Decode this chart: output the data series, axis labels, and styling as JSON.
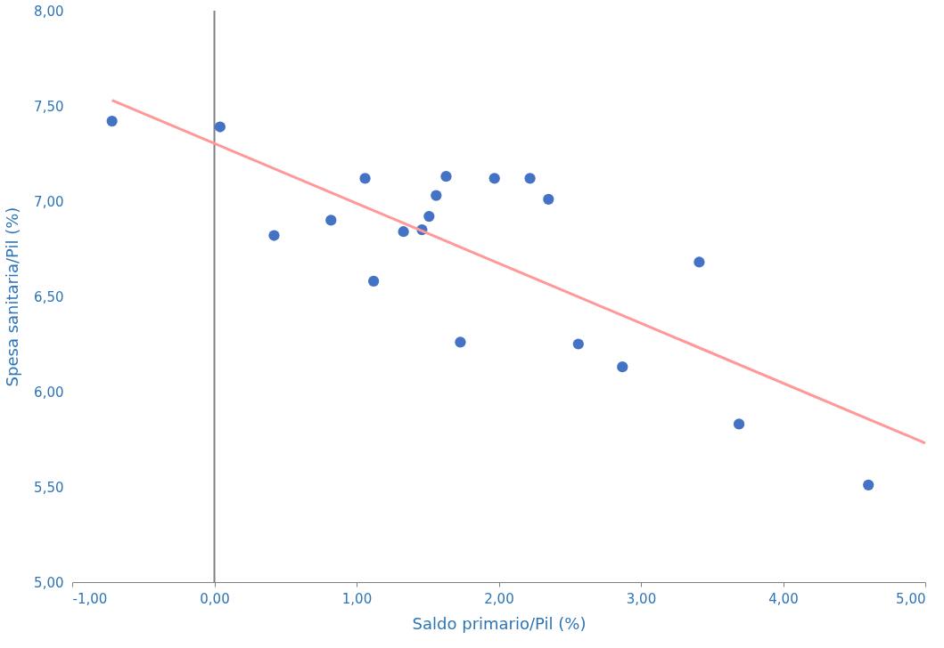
{
  "chart_data": {
    "type": "scatter",
    "xlabel": "Saldo primario/Pil (%)",
    "ylabel": "Spesa sanitaria/Pil (%)",
    "series": [
      {
        "color": "#4472c4",
        "marker": "circle",
        "x": [
          -0.72,
          0.04,
          0.42,
          0.82,
          1.06,
          1.12,
          1.33,
          1.46,
          1.51,
          1.56,
          1.63,
          1.73,
          1.97,
          2.22,
          2.35,
          2.56,
          2.87,
          3.41,
          3.69,
          4.6
        ],
        "values": [
          7.42,
          7.39,
          6.82,
          6.9,
          7.12,
          6.58,
          6.84,
          6.85,
          6.92,
          7.03,
          7.13,
          6.26,
          7.12,
          7.12,
          7.01,
          6.25,
          6.13,
          6.68,
          5.83,
          5.51
        ]
      },
      {
        "type": "line",
        "marker": "none",
        "color": "#ff9999",
        "x": [
          -0.72,
          5.0
        ],
        "values": [
          7.53,
          5.73
        ]
      }
    ],
    "xlim": [
      -1,
      5
    ],
    "xticks": [
      {
        "value": -1,
        "label": "-1,00"
      },
      {
        "value": 0,
        "label": "0,00"
      },
      {
        "value": 1,
        "label": "1,00"
      },
      {
        "value": 2,
        "label": "2,00"
      },
      {
        "value": 3,
        "label": "3,00"
      },
      {
        "value": 4,
        "label": "4,00"
      },
      {
        "value": 5,
        "label": "5,00"
      }
    ],
    "ylim": [
      5,
      8
    ],
    "yticks": [
      {
        "value": 5,
        "label": "5,00"
      },
      {
        "value": 5.5,
        "label": "5,50"
      },
      {
        "value": 6,
        "label": "6,00"
      },
      {
        "value": 6.5,
        "label": "6,50"
      },
      {
        "value": 7,
        "label": "7,00"
      },
      {
        "value": 7.5,
        "label": "7,50"
      },
      {
        "value": 8,
        "label": "8,00"
      }
    ],
    "ref_lines": [
      {
        "axis": "x",
        "value": 0,
        "color": "#808080"
      }
    ],
    "grid": false,
    "legend": false,
    "line_style": "solid"
  }
}
